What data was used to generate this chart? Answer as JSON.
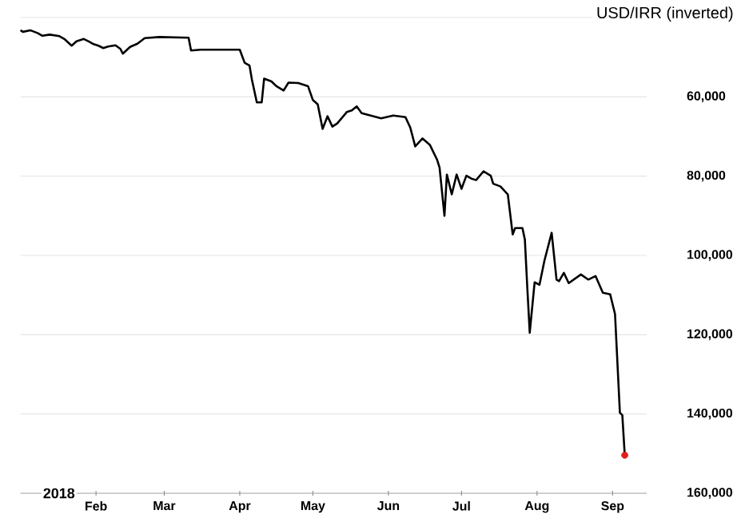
{
  "chart_data": {
    "type": "line",
    "title": "USD/IRR (inverted)",
    "annotations": [
      "2018"
    ],
    "xlim": [
      "2018-01-01",
      "2018-09-15"
    ],
    "xticks": [
      {
        "value": "2018-02-01",
        "label": "Feb"
      },
      {
        "value": "2018-03-01",
        "label": "Mar"
      },
      {
        "value": "2018-04-01",
        "label": "Apr"
      },
      {
        "value": "2018-05-01",
        "label": "May"
      },
      {
        "value": "2018-06-01",
        "label": "Jun"
      },
      {
        "value": "2018-07-01",
        "label": "Jul"
      },
      {
        "value": "2018-08-01",
        "label": "Aug"
      },
      {
        "value": "2018-09-01",
        "label": "Sep"
      }
    ],
    "ylim": [
      160000,
      40000
    ],
    "yticks": [
      {
        "value": 40000,
        "label": null
      },
      {
        "value": 60000,
        "label": "60,000"
      },
      {
        "value": 80000,
        "label": "80,000"
      },
      {
        "value": 100000,
        "label": "100,000"
      },
      {
        "value": 120000,
        "label": "120,000"
      },
      {
        "value": 140000,
        "label": "140,000"
      },
      {
        "value": 160000,
        "label": "160,000"
      }
    ],
    "grid": "y",
    "series": [
      {
        "type": "line",
        "color": "#000000",
        "marker": "none",
        "x": [
          "2018-01-01",
          "2018-01-02",
          "2018-01-05",
          "2018-01-08",
          "2018-01-10",
          "2018-01-13",
          "2018-01-17",
          "2018-01-19",
          "2018-01-22",
          "2018-01-24",
          "2018-01-27",
          "2018-01-29",
          "2018-01-31",
          "2018-02-02",
          "2018-02-04",
          "2018-02-06",
          "2018-02-09",
          "2018-02-11",
          "2018-02-12",
          "2018-02-15",
          "2018-02-18",
          "2018-02-21",
          "2018-02-27",
          "2018-03-11",
          "2018-03-12",
          "2018-03-16",
          "2018-04-01",
          "2018-04-03",
          "2018-04-05",
          "2018-04-06",
          "2018-04-08",
          "2018-04-10",
          "2018-04-11",
          "2018-04-14",
          "2018-04-16",
          "2018-04-19",
          "2018-04-21",
          "2018-04-25",
          "2018-04-29",
          "2018-05-01",
          "2018-05-03",
          "2018-05-05",
          "2018-05-07",
          "2018-05-09",
          "2018-05-11",
          "2018-05-15",
          "2018-05-17",
          "2018-05-19",
          "2018-05-21",
          "2018-05-29",
          "2018-06-03",
          "2018-06-08",
          "2018-06-10",
          "2018-06-12",
          "2018-06-15",
          "2018-06-18",
          "2018-06-21",
          "2018-06-22",
          "2018-06-24",
          "2018-06-25",
          "2018-06-27",
          "2018-06-29",
          "2018-07-01",
          "2018-07-03",
          "2018-07-05",
          "2018-07-07",
          "2018-07-10",
          "2018-07-13",
          "2018-07-14",
          "2018-07-17",
          "2018-07-20",
          "2018-07-22",
          "2018-07-23",
          "2018-07-26",
          "2018-07-27",
          "2018-07-28",
          "2018-07-29",
          "2018-07-31",
          "2018-08-02",
          "2018-08-04",
          "2018-08-07",
          "2018-08-09",
          "2018-08-10",
          "2018-08-12",
          "2018-08-14",
          "2018-08-19",
          "2018-08-22",
          "2018-08-25",
          "2018-08-28",
          "2018-08-31",
          "2018-09-02",
          "2018-09-04",
          "2018-09-05",
          "2018-09-06"
        ],
        "values": [
          43200,
          43600,
          43200,
          43900,
          44600,
          44300,
          44700,
          45400,
          47100,
          46000,
          45400,
          46000,
          46700,
          47100,
          47700,
          47300,
          47000,
          47900,
          49100,
          47400,
          46600,
          45200,
          44900,
          45100,
          48300,
          48100,
          48100,
          51400,
          52100,
          55700,
          61400,
          61400,
          55400,
          56100,
          57300,
          58400,
          56400,
          56500,
          57300,
          60800,
          61900,
          68100,
          64900,
          67500,
          66700,
          63800,
          63400,
          62400,
          64100,
          65400,
          64700,
          65100,
          67800,
          72500,
          70500,
          72100,
          75900,
          77900,
          90000,
          79600,
          84600,
          79600,
          83200,
          79900,
          80600,
          81000,
          78800,
          79900,
          81900,
          82600,
          84600,
          94700,
          93100,
          93100,
          96000,
          108100,
          119500,
          106800,
          107400,
          101400,
          94300,
          106100,
          106500,
          104400,
          107000,
          104800,
          106100,
          105200,
          109400,
          109800,
          114800,
          139700,
          140300,
          150400
        ]
      },
      {
        "type": "scatter",
        "color": "#e0201b",
        "marker": "circle",
        "x": [
          "2018-09-06"
        ],
        "values": [
          150400
        ]
      }
    ]
  }
}
